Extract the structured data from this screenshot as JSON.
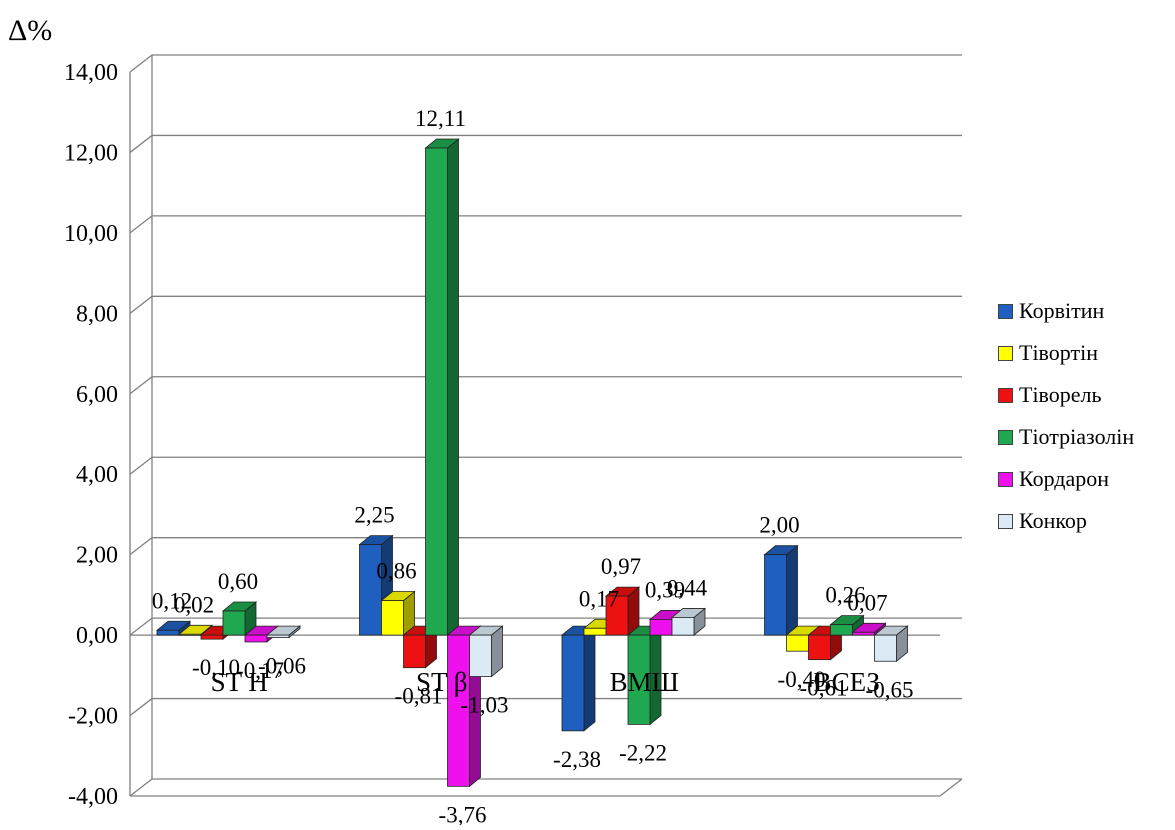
{
  "chart_data": {
    "type": "bar",
    "ylabel": "Δ%",
    "ylim": [
      -4,
      14
    ],
    "yticks": [
      "-4,00",
      "-2,00",
      "0,00",
      "2,00",
      "4,00",
      "6,00",
      "8,00",
      "10,00",
      "12,00",
      "14,00"
    ],
    "categories": [
      "ST H",
      "ST β",
      "ВМШ",
      "ВСЕЗ"
    ],
    "series": [
      {
        "name": "Корвітин",
        "color": "#1f5fbf",
        "values": [
          0.12,
          2.25,
          -2.38,
          2.0
        ],
        "labels": [
          "0,12",
          "2,25",
          "-2,38",
          "2,00"
        ]
      },
      {
        "name": "Тівортін",
        "color": "#ffff00",
        "values": [
          0.02,
          0.86,
          0.17,
          -0.4
        ],
        "labels": [
          "0,02",
          "0,86",
          "0,17",
          "-0,40"
        ]
      },
      {
        "name": "Тіворель",
        "color": "#ee1111",
        "values": [
          -0.1,
          -0.81,
          0.97,
          -0.61
        ],
        "labels": [
          "-0,10",
          "-0,81",
          "0,97",
          "-0,61"
        ]
      },
      {
        "name": "Тіотріазолін",
        "color": "#1fa84f",
        "values": [
          0.6,
          12.11,
          -2.22,
          0.26
        ],
        "labels": [
          "0,60",
          "12,11",
          "-2,22",
          "0,26"
        ]
      },
      {
        "name": "Кордарон",
        "color": "#ee11ee",
        "values": [
          -0.17,
          -3.76,
          0.39,
          0.07
        ],
        "labels": [
          "-0,17",
          "-3,76",
          "0,39",
          "0,07"
        ]
      },
      {
        "name": "Конкор",
        "color": "#dceaf6",
        "values": [
          -0.06,
          -1.03,
          0.44,
          -0.65
        ],
        "labels": [
          "-0,06",
          "-1,03",
          "0,44",
          "-0,65"
        ]
      }
    ],
    "grid": true,
    "legend_position": "right"
  }
}
